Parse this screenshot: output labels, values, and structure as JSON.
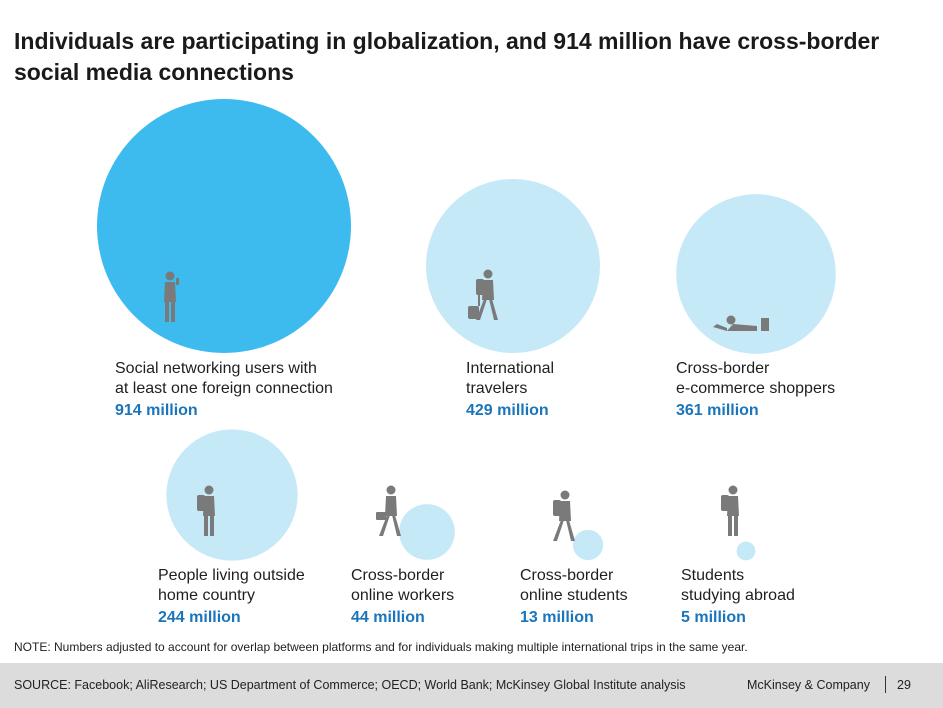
{
  "title": "Individuals are participating in globalization, and 914 million have cross-border social media connections",
  "chart_data": {
    "type": "bubble",
    "unit": "million",
    "items": [
      {
        "label_line1": "Social networking users with",
        "label_line2": "at least one foreign connection",
        "value": 914,
        "value_text": "914 million",
        "color": "#3dbbef",
        "icon": "person-with-phone-icon"
      },
      {
        "label_line1": "International",
        "label_line2": "travelers",
        "value": 429,
        "value_text": "429 million",
        "color": "#c6e9f8",
        "icon": "traveler-with-suitcase-icon"
      },
      {
        "label_line1": "Cross-border",
        "label_line2": "e-commerce shoppers",
        "value": 361,
        "value_text": "361 million",
        "color": "#c6e9f8",
        "icon": "person-lying-with-laptop-icon"
      },
      {
        "label_line1": "People living outside",
        "label_line2": "home country",
        "value": 244,
        "value_text": "244 million",
        "color": "#c6e9f8",
        "icon": "person-with-backpack-icon"
      },
      {
        "label_line1": "Cross-border",
        "label_line2": "online workers",
        "value": 44,
        "value_text": "44 million",
        "color": "#c6e9f8",
        "icon": "walking-person-with-briefcase-icon"
      },
      {
        "label_line1": "Cross-border",
        "label_line2": "online students",
        "value": 13,
        "value_text": "13 million",
        "color": "#c6e9f8",
        "icon": "walking-student-icon"
      },
      {
        "label_line1": "Students",
        "label_line2": "studying abroad",
        "value": 5,
        "value_text": "5 million",
        "color": "#c6e9f8",
        "icon": "standing-student-icon"
      }
    ]
  },
  "note": "NOTE: Numbers adjusted to account for overlap  between platforms and for individuals  making multiple international trips in the same year.",
  "footer": {
    "source": "SOURCE: Facebook; AliResearch; US Department of Commerce; OECD; World Bank; McKinsey Global Institute analysis",
    "brand": "McKinsey & Company",
    "page_number": "29"
  },
  "colors": {
    "accent_blue": "#1b75bb",
    "silhouette": "#7a7a7a",
    "footer_bg": "#dcdcdc"
  }
}
